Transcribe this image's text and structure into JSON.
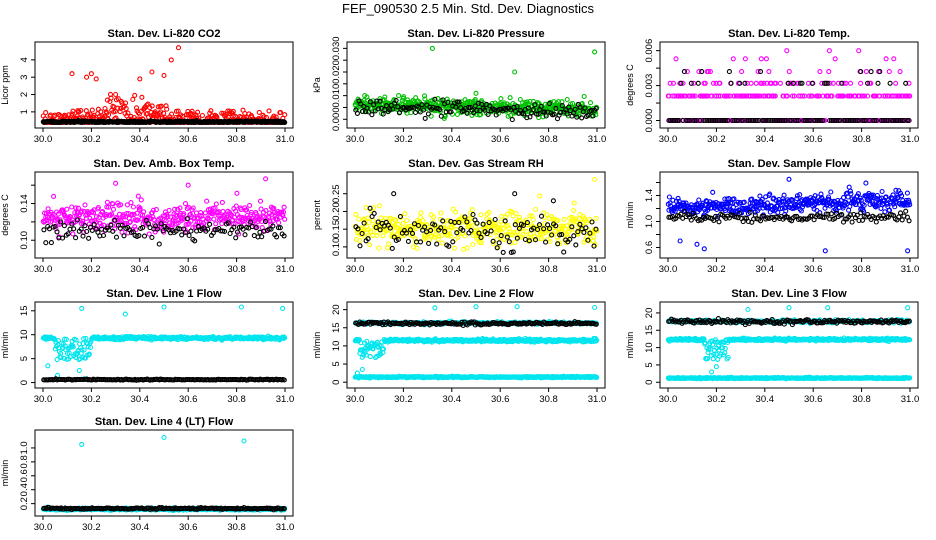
{
  "page_title": "FEF_090530  2.5 Min. Std. Dev. Diagnostics",
  "chart_data": [
    {
      "id": "co2",
      "type": "scatter",
      "title": "Stan. Dev. Li-820 CO2",
      "xlabel": "",
      "ylabel": "Licor ppm",
      "xlim": [
        30.0,
        31.0
      ],
      "xticks": [
        "30.0",
        "30.2",
        "30.4",
        "30.6",
        "30.8",
        "31.0"
      ],
      "ylim": [
        0.3,
        4.8
      ],
      "yticks": [
        1,
        2,
        3,
        4
      ],
      "yticklabels": [
        "1",
        "2",
        "3",
        "4"
      ],
      "series": [
        {
          "name": "red",
          "color": "#ff0000",
          "count": 400,
          "base": 0.5,
          "noise": 0.45,
          "spikes": [
            [
              30.18,
              3.0
            ],
            [
              30.2,
              3.2
            ],
            [
              30.22,
              2.9
            ],
            [
              30.12,
              3.2
            ],
            [
              30.3,
              2.0
            ],
            [
              30.4,
              2.9
            ],
            [
              30.45,
              3.3
            ],
            [
              30.5,
              3.1
            ],
            [
              30.53,
              4.0
            ],
            [
              30.56,
              4.7
            ]
          ],
          "bump": [
            [
              30.1,
              30.6,
              1.2
            ]
          ]
        },
        {
          "name": "black",
          "color": "#000000",
          "count": 400,
          "base": 0.42,
          "noise": 0.04,
          "spikes": []
        }
      ]
    },
    {
      "id": "pressure",
      "type": "scatter",
      "title": "Stan. Dev. Li-820 Pressure",
      "xlabel": "",
      "ylabel": "kPa",
      "xlim": [
        30.0,
        31.0
      ],
      "xticks": [
        "30.0",
        "30.2",
        "30.4",
        "30.6",
        "30.8",
        "31.0"
      ],
      "ylim": [
        -0.002,
        0.031
      ],
      "yticks": [
        0.0,
        0.005,
        0.01,
        0.015,
        0.02,
        0.025,
        0.03
      ],
      "yticklabels": [
        "0.000",
        "",
        "0.010",
        "",
        "0.020",
        "",
        "0.030"
      ],
      "series": [
        {
          "name": "green",
          "color": "#00c000",
          "count": 500,
          "base": 0.006,
          "noise": 0.0025,
          "trend": -0.002,
          "spikes": [
            [
              30.32,
              0.03
            ],
            [
              30.66,
              0.02
            ],
            [
              30.99,
              0.0285
            ],
            [
              30.04,
              0.01
            ],
            [
              30.18,
              0.01
            ],
            [
              30.5,
              0.011
            ]
          ]
        },
        {
          "name": "black",
          "color": "#000000",
          "count": 150,
          "base": 0.005,
          "noise": 0.0025,
          "trend": -0.002,
          "spikes": []
        }
      ]
    },
    {
      "id": "temp",
      "type": "scatter",
      "title": "Stan. Dev. Li-820 Temp.",
      "xlabel": "",
      "ylabel": "degrees C",
      "xlim": [
        30.0,
        31.0
      ],
      "xticks": [
        "30.0",
        "30.2",
        "30.4",
        "30.6",
        "30.8",
        "31.0"
      ],
      "ylim": [
        -0.0003,
        0.0064
      ],
      "yticks": [
        0,
        0.0015,
        0.003,
        0.0045,
        0.006
      ],
      "yticklabels": [
        "0.000",
        "",
        "0.003",
        "",
        "0.006"
      ],
      "series": [
        {
          "name": "magenta",
          "color": "#ff00ff",
          "count": 380,
          "levels": [
            0,
            0.0021,
            0.0032,
            0.0042,
            0.0053,
            0.006
          ],
          "weights": [
            0.45,
            0.35,
            0.12,
            0.05,
            0.02,
            0.01
          ],
          "spikes": []
        },
        {
          "name": "black",
          "color": "#000000",
          "count": 140,
          "levels": [
            0,
            0.0032,
            0.0042
          ],
          "weights": [
            0.85,
            0.1,
            0.05
          ],
          "spikes": []
        }
      ]
    },
    {
      "id": "box",
      "type": "scatter",
      "title": "Stan. Dev. Amb. Box Temp.",
      "xlabel": "",
      "ylabel": "degrees C",
      "xlim": [
        30.0,
        31.0
      ],
      "xticks": [
        "30.0",
        "30.2",
        "30.4",
        "30.6",
        "30.8",
        "31.0"
      ],
      "ylim": [
        0.085,
        0.17
      ],
      "yticks": [
        0.1,
        0.12,
        0.14,
        0.16
      ],
      "yticklabels": [
        "0.10",
        "",
        "0.14",
        ""
      ],
      "series": [
        {
          "name": "magenta",
          "color": "#ff00ff",
          "count": 400,
          "base": 0.125,
          "noise": 0.013,
          "spikes": [
            [
              30.3,
              0.162
            ],
            [
              30.92,
              0.167
            ],
            [
              30.6,
              0.16
            ]
          ]
        },
        {
          "name": "black",
          "color": "#000000",
          "count": 130,
          "base": 0.11,
          "noise": 0.008,
          "spikes": []
        }
      ]
    },
    {
      "id": "rh",
      "type": "scatter",
      "title": "Stan. Dev. Gas Stream RH",
      "xlabel": "",
      "ylabel": "percent",
      "xlim": [
        30.0,
        31.0
      ],
      "xticks": [
        "30.0",
        "30.2",
        "30.4",
        "30.6",
        "30.8",
        "31.0"
      ],
      "ylim": [
        0.08,
        0.3
      ],
      "yticks": [
        0.1,
        0.15,
        0.2,
        0.25
      ],
      "yticklabels": [
        "0.10",
        "0.15",
        "0.20",
        "0.25"
      ],
      "series": [
        {
          "name": "yellow",
          "color": "#ffff00",
          "count": 420,
          "base": 0.15,
          "noise": 0.04,
          "spikes": [
            [
              30.99,
              0.29
            ]
          ]
        },
        {
          "name": "black",
          "color": "#000000",
          "count": 120,
          "base": 0.14,
          "noise": 0.04,
          "spikes": [
            [
              30.16,
              0.25
            ],
            [
              30.66,
              0.25
            ],
            [
              30.82,
              0.23
            ]
          ]
        }
      ]
    },
    {
      "id": "flow",
      "type": "scatter",
      "title": "Stan. Dev. Sample Flow",
      "xlabel": "",
      "ylabel": "ml/min",
      "xlim": [
        30.0,
        31.0
      ],
      "xticks": [
        "30.0",
        "30.2",
        "30.4",
        "30.6",
        "30.8",
        "31.0"
      ],
      "ylim": [
        0.5,
        1.7
      ],
      "yticks": [
        0.6,
        0.8,
        1.0,
        1.2,
        1.4,
        1.6
      ],
      "yticklabels": [
        "0.6",
        "",
        "1.0",
        "",
        "1.4",
        ""
      ],
      "series": [
        {
          "name": "blue",
          "color": "#0000ff",
          "count": 420,
          "base": 1.22,
          "noise": 0.12,
          "trend": 0.1,
          "spikes": [
            [
              30.5,
              1.65
            ],
            [
              30.15,
              0.58
            ],
            [
              30.65,
              0.55
            ],
            [
              30.99,
              0.55
            ],
            [
              30.05,
              0.7
            ],
            [
              30.12,
              0.65
            ]
          ]
        },
        {
          "name": "black",
          "color": "#000000",
          "count": 140,
          "base": 1.06,
          "noise": 0.06,
          "spikes": []
        }
      ]
    },
    {
      "id": "line1",
      "type": "scatter",
      "title": "Stan. Dev. Line 1 Flow",
      "xlabel": "",
      "ylabel": "ml/min",
      "xlim": [
        30.0,
        31.0
      ],
      "xticks": [
        "30.0",
        "30.2",
        "30.4",
        "30.6",
        "30.8",
        "31.0"
      ],
      "ylim": [
        -0.3,
        16
      ],
      "yticks": [
        0,
        5,
        10,
        15
      ],
      "yticklabels": [
        "0",
        "5",
        "10",
        "15"
      ],
      "series": [
        {
          "name": "cyan",
          "color": "#00e5ee",
          "count": 420,
          "base": 9.3,
          "noise": 0.25,
          "dip": [
            30.05,
            30.2,
            4.5
          ],
          "spikes": [
            [
              30.16,
              15.5
            ],
            [
              30.34,
              14.3
            ],
            [
              30.5,
              15.8
            ],
            [
              30.82,
              15.8
            ],
            [
              30.99,
              15.5
            ],
            [
              30.02,
              3.5
            ],
            [
              30.06,
              1.5
            ],
            [
              30.15,
              2.5
            ],
            [
              30.17,
              0.8
            ]
          ]
        },
        {
          "name": "black",
          "color": "#000000",
          "count": 180,
          "base": 0.6,
          "noise": 0.08,
          "spikes": []
        }
      ]
    },
    {
      "id": "line2",
      "type": "scatter",
      "title": "Stan. Dev. Line 2 Flow",
      "xlabel": "",
      "ylabel": "ml/min",
      "xlim": [
        30.0,
        31.0
      ],
      "xticks": [
        "30.0",
        "30.2",
        "30.4",
        "30.6",
        "30.8",
        "31.0"
      ],
      "ylim": [
        -0.5,
        21
      ],
      "yticks": [
        0,
        5,
        10,
        15,
        20
      ],
      "yticklabels": [
        "0",
        "5",
        "10",
        "15",
        "20"
      ],
      "series": [
        {
          "name": "cyan",
          "color": "#00e5ee",
          "count": 420,
          "base": 11.5,
          "noise": 0.3,
          "dip": [
            30.02,
            30.12,
            5
          ],
          "spikes": [
            [
              30.33,
              20.5
            ],
            [
              30.5,
              20.8
            ],
            [
              30.67,
              20.8
            ],
            [
              30.99,
              20.6
            ],
            [
              30.01,
              2.5
            ],
            [
              30.03,
              3.5
            ]
          ]
        },
        {
          "name": "cyan",
          "color": "#00e5ee",
          "count": 420,
          "base": 1.4,
          "noise": 0.15,
          "spikes": []
        },
        {
          "name": "cyan",
          "color": "#00e5ee",
          "count": 200,
          "base": 16.3,
          "noise": 0.3,
          "spikes": []
        },
        {
          "name": "black",
          "color": "#000000",
          "count": 180,
          "base": 16.2,
          "noise": 0.35,
          "spikes": []
        }
      ]
    },
    {
      "id": "line3",
      "type": "scatter",
      "title": "Stan. Dev. Line 3 Flow",
      "xlabel": "",
      "ylabel": "ml/min",
      "xlim": [
        30.0,
        31.0
      ],
      "xticks": [
        "30.0",
        "30.2",
        "30.4",
        "30.6",
        "30.8",
        "31.0"
      ],
      "ylim": [
        -0.5,
        22
      ],
      "yticks": [
        0,
        5,
        10,
        15,
        20
      ],
      "yticklabels": [
        "0",
        "5",
        "10",
        "15",
        "20"
      ],
      "series": [
        {
          "name": "cyan",
          "color": "#00e5ee",
          "count": 420,
          "base": 12.3,
          "noise": 0.3,
          "dip": [
            30.15,
            30.25,
            6
          ],
          "spikes": [
            [
              30.33,
              21.0
            ],
            [
              30.5,
              21.5
            ],
            [
              30.66,
              21.5
            ],
            [
              30.99,
              21.5
            ],
            [
              30.18,
              3.0
            ],
            [
              30.2,
              4.5
            ]
          ]
        },
        {
          "name": "cyan",
          "color": "#00e5ee",
          "count": 420,
          "base": 1.2,
          "noise": 0.12,
          "spikes": []
        },
        {
          "name": "cyan",
          "color": "#00e5ee",
          "count": 200,
          "base": 17.6,
          "noise": 0.35,
          "spikes": []
        },
        {
          "name": "black",
          "color": "#000000",
          "count": 180,
          "base": 17.5,
          "noise": 0.45,
          "spikes": []
        }
      ]
    },
    {
      "id": "line4",
      "type": "scatter",
      "title": "Stan. Dev. Line 4 (LT) Flow",
      "xlabel": "",
      "ylabel": "ml/min",
      "xlim": [
        30.0,
        31.0
      ],
      "xticks": [
        "30.0",
        "30.2",
        "30.4",
        "30.6",
        "30.8",
        "31.0"
      ],
      "ylim": [
        0.08,
        1.2
      ],
      "yticks": [
        0.2,
        0.4,
        0.6,
        0.8,
        1.0
      ],
      "yticklabels": [
        "0.2",
        "0.4",
        "0.6",
        "0.8",
        "1.0"
      ],
      "series": [
        {
          "name": "cyan",
          "color": "#00e5ee",
          "count": 420,
          "base": 0.12,
          "noise": 0.012,
          "spikes": [
            [
              30.16,
              1.05
            ],
            [
              30.5,
              1.15
            ],
            [
              30.83,
              1.1
            ],
            [
              30.02,
              0.15
            ]
          ]
        },
        {
          "name": "black",
          "color": "#000000",
          "count": 180,
          "base": 0.13,
          "noise": 0.01,
          "spikes": []
        }
      ]
    }
  ]
}
